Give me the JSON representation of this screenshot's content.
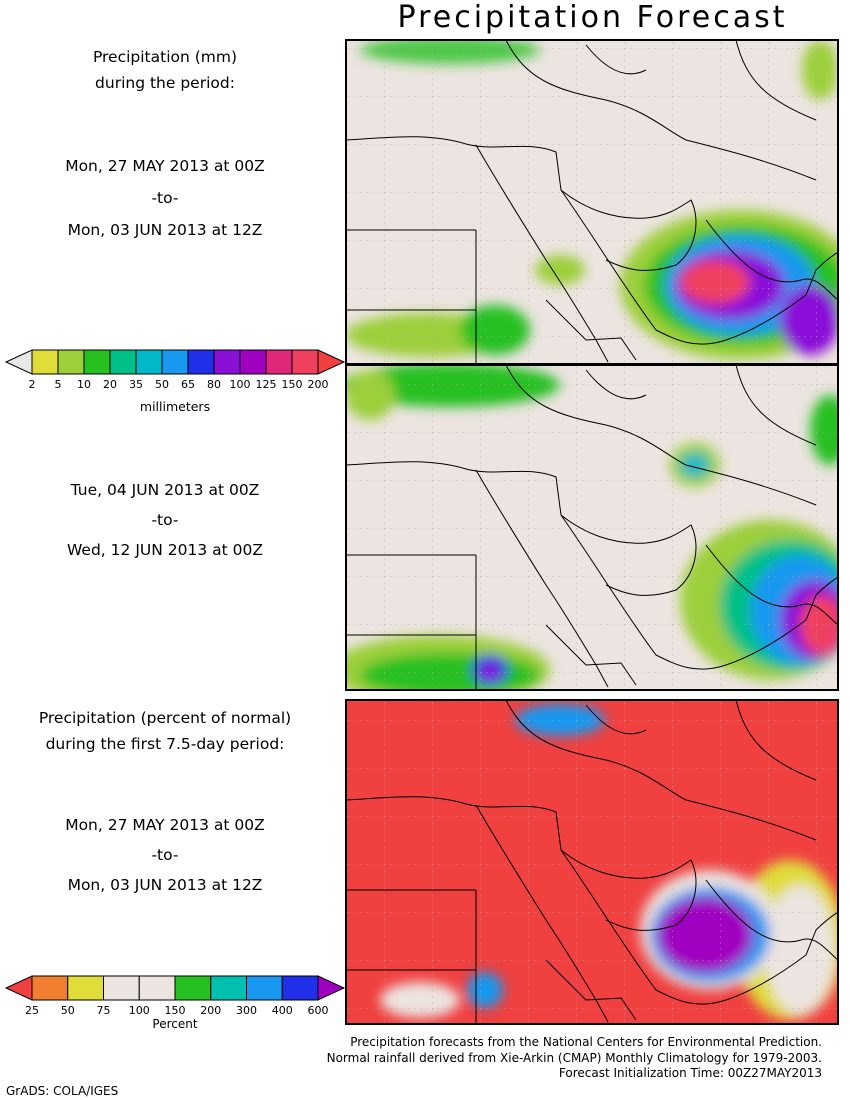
{
  "title": "Precipitation Forecast",
  "panel1": {
    "heading_line1": "Precipitation (mm)",
    "heading_line2": "during the period:",
    "start": "Mon, 27 MAY 2013 at 00Z",
    "to": "-to-",
    "end": "Mon, 03 JUN 2013 at 12Z"
  },
  "panel2": {
    "start": "Tue, 04 JUN 2013 at 00Z",
    "to": "-to-",
    "end": "Wed, 12 JUN 2013 at 00Z"
  },
  "panel3": {
    "heading_line1": "Precipitation (percent of normal)",
    "heading_line2": "during the first 7.5-day period:",
    "start": "Mon, 27 MAY 2013 at 00Z",
    "to": "-to-",
    "end": "Mon, 03 JUN 2013 at 12Z"
  },
  "precip_colorbar": {
    "unit": "millimeters",
    "ticks": [
      "2",
      "5",
      "10",
      "20",
      "35",
      "50",
      "65",
      "80",
      "100",
      "125",
      "150",
      "200"
    ],
    "colors": [
      "#e8e8e8",
      "#e0dc3a",
      "#9ccf3a",
      "#26c020",
      "#00c088",
      "#00b8c8",
      "#1898f0",
      "#2030e8",
      "#8a10d8",
      "#a000c0",
      "#e02878",
      "#f04060",
      "#f04040"
    ]
  },
  "percent_colorbar": {
    "unit": "Percent",
    "ticks": [
      "25",
      "50",
      "75",
      "100",
      "150",
      "200",
      "300",
      "400",
      "600"
    ],
    "colors": [
      "#f04040",
      "#f08030",
      "#e0dc3a",
      "#ece4e0",
      "#ece4e0",
      "#26c020",
      "#00c0b0",
      "#1898f0",
      "#2030e8",
      "#a000c0"
    ]
  },
  "footer": {
    "line1": "Precipitation forecasts from the National Centers for Environmental Prediction.",
    "line2": "Normal rainfall derived from Xie-Arkin (CMAP) Monthly Climatology for 1979-2003.",
    "line3": "Forecast Initialization Time: 00Z27MAY2013"
  },
  "credit": "GrADS: COLA/IGES",
  "map_colors": {
    "land": "#ece4e0",
    "dry": "#f04040"
  }
}
